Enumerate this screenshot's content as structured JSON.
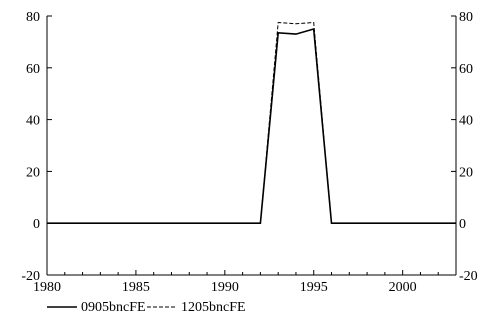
{
  "chart_data": {
    "type": "line",
    "title": "",
    "xlabel": "",
    "ylabel": "",
    "xlim": [
      1980,
      2003
    ],
    "ylim": [
      -20,
      80
    ],
    "x_ticks": [
      1980,
      1985,
      1990,
      1995,
      2000
    ],
    "x_tick_labels": [
      "1980",
      "1985",
      "1990",
      "1995",
      "2000"
    ],
    "y_ticks": [
      -20,
      0,
      20,
      40,
      60,
      80
    ],
    "y_tick_labels_left": [
      "-20",
      "0",
      "20",
      "40",
      "60",
      "80"
    ],
    "y_tick_labels_right": [
      "-20",
      "0",
      "20",
      "40",
      "60",
      "80"
    ],
    "x": [
      1980,
      1981,
      1982,
      1983,
      1984,
      1985,
      1986,
      1987,
      1988,
      1989,
      1990,
      1991,
      1992,
      1993,
      1994,
      1995,
      1996,
      1997,
      1998,
      1999,
      2000,
      2001,
      2002,
      2003
    ],
    "series": [
      {
        "name": "0905bncFE",
        "style": "solid",
        "values": [
          0,
          0,
          0,
          0,
          0,
          0,
          0,
          0,
          0,
          0,
          0,
          0,
          0,
          73.5,
          73,
          75,
          0,
          0,
          0,
          0,
          0,
          0,
          0,
          0
        ]
      },
      {
        "name": "1205bncFE",
        "style": "dashed",
        "values": [
          0,
          0,
          0,
          0,
          0,
          0,
          0,
          0,
          0,
          0,
          0,
          0,
          0,
          77.5,
          77,
          77.5,
          0,
          0,
          0,
          0,
          0,
          0,
          0,
          0
        ]
      }
    ],
    "grid": false,
    "legend": "bottom-left",
    "colors": {
      "line": "#000000",
      "axis": "#000000",
      "background": "#ffffff"
    }
  }
}
